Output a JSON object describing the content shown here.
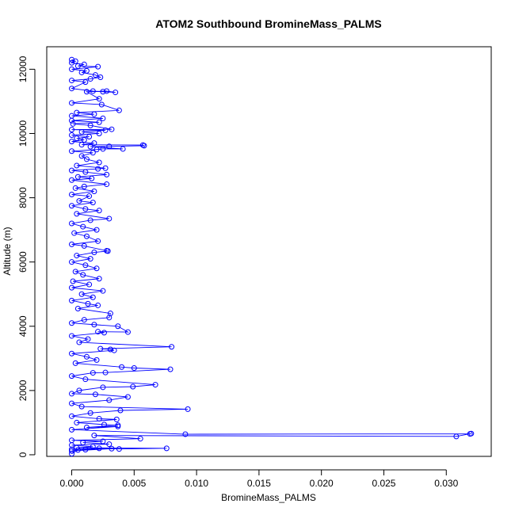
{
  "chart_data": {
    "type": "line",
    "title": "ATOM2 Southbound BromineMass_PALMS",
    "xlabel": "BromineMass_PALMS",
    "ylabel": "Altitude (m)",
    "xlim": [
      -0.002,
      0.0336
    ],
    "ylim": [
      -50,
      12700
    ],
    "x_ticks": [
      0.0,
      0.005,
      0.01,
      0.015,
      0.02,
      0.025,
      0.03
    ],
    "x_tick_labels": [
      "0.000",
      "0.005",
      "0.010",
      "0.015",
      "0.020",
      "0.025",
      "0.030"
    ],
    "y_ticks": [
      0,
      2000,
      4000,
      6000,
      8000,
      10000,
      12000
    ],
    "y_tick_labels": [
      "0",
      "2000",
      "4000",
      "6000",
      "8000",
      "10000",
      "12000"
    ],
    "grid": false,
    "legend": "none",
    "series": [
      {
        "color": "#0000ff",
        "marker": "open-circle",
        "points": [
          [
            0.0,
            12300
          ],
          [
            0.0003,
            12250
          ],
          [
            0.0,
            12200
          ],
          [
            0.001,
            12150
          ],
          [
            0.0005,
            12100
          ],
          [
            0.0021,
            12080
          ],
          [
            0.0,
            12000
          ],
          [
            0.0012,
            11950
          ],
          [
            0.0008,
            11900
          ],
          [
            0.0019,
            11820
          ],
          [
            0.0023,
            11750
          ],
          [
            0.0015,
            11700
          ],
          [
            0.0,
            11650
          ],
          [
            0.0011,
            11600
          ],
          [
            0.0,
            11400
          ],
          [
            0.0017,
            11320
          ],
          [
            0.0025,
            11300
          ],
          [
            0.0035,
            11280
          ],
          [
            0.0028,
            11320
          ],
          [
            0.0012,
            11300
          ],
          [
            0.0022,
            11080
          ],
          [
            0.0,
            10950
          ],
          [
            0.0024,
            10900
          ],
          [
            0.0038,
            10720
          ],
          [
            0.0004,
            10650
          ],
          [
            0.0018,
            10600
          ],
          [
            0.0,
            10550
          ],
          [
            0.0025,
            10470
          ],
          [
            0.0,
            10400
          ],
          [
            0.0022,
            10350
          ],
          [
            0.0001,
            10300
          ],
          [
            0.0015,
            10250
          ],
          [
            0.0032,
            10130
          ],
          [
            0.0,
            10120
          ],
          [
            0.0027,
            10100
          ],
          [
            0.0008,
            10050
          ],
          [
            0.0022,
            10000
          ],
          [
            0.0,
            9950
          ],
          [
            0.0014,
            9900
          ],
          [
            0.0004,
            9850
          ],
          [
            0.001,
            9800
          ],
          [
            0.0,
            9750
          ],
          [
            0.0018,
            9700
          ],
          [
            0.0008,
            9650
          ],
          [
            0.0057,
            9640
          ],
          [
            0.0058,
            9620
          ],
          [
            0.003,
            9600
          ],
          [
            0.0015,
            9590
          ],
          [
            0.0041,
            9520
          ],
          [
            0.0025,
            9520
          ],
          [
            0.002,
            9500
          ],
          [
            0.0,
            9450
          ],
          [
            0.0017,
            9400
          ],
          [
            0.0008,
            9300
          ],
          [
            0.0012,
            9200
          ],
          [
            0.0022,
            9100
          ],
          [
            0.0004,
            9000
          ],
          [
            0.0027,
            8920
          ],
          [
            0.0021,
            8900
          ],
          [
            0.0,
            8850
          ],
          [
            0.0011,
            8800
          ],
          [
            0.0028,
            8720
          ],
          [
            0.0005,
            8650
          ],
          [
            0.0016,
            8600
          ],
          [
            0.0,
            8550
          ],
          [
            0.0028,
            8420
          ],
          [
            0.001,
            8350
          ],
          [
            0.0003,
            8300
          ],
          [
            0.0018,
            8200
          ],
          [
            0.0,
            8100
          ],
          [
            0.0014,
            8050
          ],
          [
            0.0006,
            7900
          ],
          [
            0.0017,
            7850
          ],
          [
            0.0,
            7750
          ],
          [
            0.0011,
            7650
          ],
          [
            0.0022,
            7600
          ],
          [
            0.0004,
            7500
          ],
          [
            0.003,
            7350
          ],
          [
            0.0015,
            7300
          ],
          [
            0.0,
            7200
          ],
          [
            0.0009,
            7100
          ],
          [
            0.002,
            7000
          ],
          [
            0.0002,
            6900
          ],
          [
            0.0012,
            6800
          ],
          [
            0.0021,
            6650
          ],
          [
            0.0,
            6550
          ],
          [
            0.001,
            6500
          ],
          [
            0.0028,
            6350
          ],
          [
            0.0029,
            6340
          ],
          [
            0.0018,
            6300
          ],
          [
            0.0004,
            6200
          ],
          [
            0.0015,
            6100
          ],
          [
            0.0,
            6000
          ],
          [
            0.0011,
            5900
          ],
          [
            0.002,
            5800
          ],
          [
            0.0003,
            5700
          ],
          [
            0.0009,
            5600
          ],
          [
            0.0022,
            5480
          ],
          [
            0.0001,
            5400
          ],
          [
            0.0014,
            5300
          ],
          [
            0.0,
            5200
          ],
          [
            0.0025,
            5100
          ],
          [
            0.0008,
            5000
          ],
          [
            0.0017,
            4900
          ],
          [
            0.0,
            4800
          ],
          [
            0.0013,
            4700
          ],
          [
            0.0021,
            4650
          ],
          [
            0.0005,
            4550
          ],
          [
            0.0031,
            4400
          ],
          [
            0.003,
            4270
          ],
          [
            0.001,
            4200
          ],
          [
            0.0,
            4100
          ],
          [
            0.0018,
            4050
          ],
          [
            0.0037,
            4000
          ],
          [
            0.0045,
            3820
          ],
          [
            0.0021,
            3830
          ],
          [
            0.0026,
            3800
          ],
          [
            0.0,
            3700
          ],
          [
            0.0013,
            3600
          ],
          [
            0.0006,
            3500
          ],
          [
            0.008,
            3360
          ],
          [
            0.0023,
            3300
          ],
          [
            0.0031,
            3280
          ],
          [
            0.0034,
            3250
          ],
          [
            0.0,
            3150
          ],
          [
            0.0012,
            3050
          ],
          [
            0.002,
            2950
          ],
          [
            0.0003,
            2850
          ],
          [
            0.004,
            2730
          ],
          [
            0.005,
            2700
          ],
          [
            0.0079,
            2660
          ],
          [
            0.0027,
            2560
          ],
          [
            0.0017,
            2550
          ],
          [
            0.0,
            2450
          ],
          [
            0.0011,
            2350
          ],
          [
            0.0067,
            2180
          ],
          [
            0.0049,
            2120
          ],
          [
            0.0025,
            2100
          ],
          [
            0.0006,
            2000
          ],
          [
            0.0,
            1900
          ],
          [
            0.0019,
            1880
          ],
          [
            0.0045,
            1800
          ],
          [
            0.003,
            1700
          ],
          [
            0.0,
            1600
          ],
          [
            0.0008,
            1500
          ],
          [
            0.0093,
            1420
          ],
          [
            0.0039,
            1380
          ],
          [
            0.0015,
            1300
          ],
          [
            0.0,
            1200
          ],
          [
            0.0022,
            1120
          ],
          [
            0.0036,
            1100
          ],
          [
            0.0004,
            1000
          ],
          [
            0.0026,
            940
          ],
          [
            0.0037,
            920
          ],
          [
            0.0012,
            850
          ],
          [
            0.0037,
            880
          ],
          [
            0.0,
            780
          ],
          [
            0.0091,
            640
          ],
          [
            0.0319,
            650
          ],
          [
            0.032,
            660
          ],
          [
            0.0308,
            570
          ],
          [
            0.0018,
            600
          ],
          [
            0.0055,
            500
          ],
          [
            0.0,
            450
          ],
          [
            0.0025,
            420
          ],
          [
            0.0009,
            380
          ],
          [
            0.003,
            330
          ],
          [
            0.0,
            300
          ],
          [
            0.0017,
            250
          ],
          [
            0.0004,
            220
          ],
          [
            0.0076,
            200
          ],
          [
            0.0038,
            180
          ],
          [
            0.0022,
            200
          ],
          [
            0.0,
            170
          ],
          [
            0.0011,
            160
          ],
          [
            0.0032,
            190
          ],
          [
            0.0,
            120
          ],
          [
            0.0005,
            150
          ],
          [
            0.0,
            30
          ]
        ]
      }
    ]
  }
}
